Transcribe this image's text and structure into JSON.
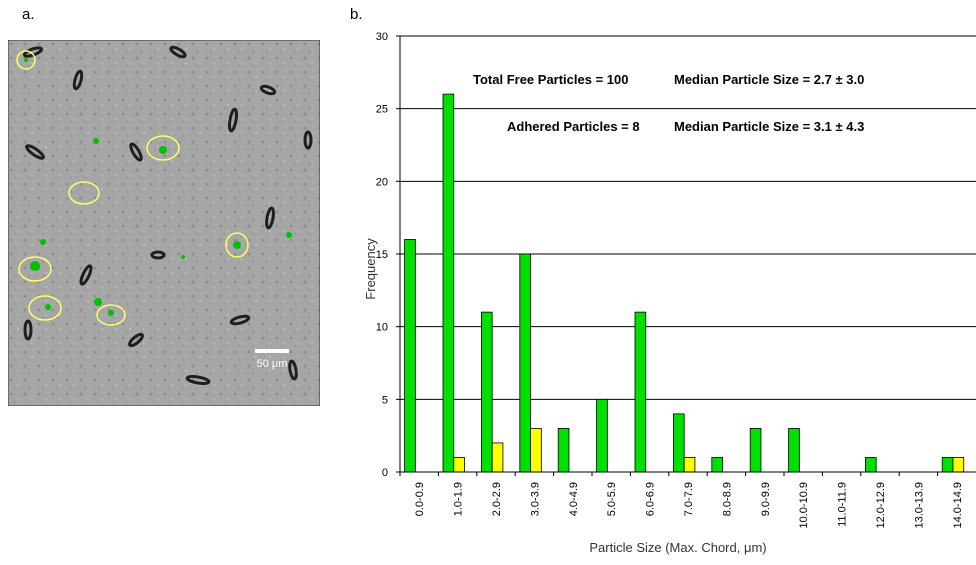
{
  "panels": {
    "a_label": "a.",
    "b_label": "b."
  },
  "micrograph": {
    "scale_bar_label": "50 μm"
  },
  "colors": {
    "free": "#00e000",
    "adhered": "#ffff00",
    "bar_outline": "#000000",
    "circle": "#ffff66",
    "micrograph_bg": "#a6a6a6"
  },
  "chart_data": {
    "type": "bar",
    "xlabel": "Particle Size (Max. Chord, μm)",
    "ylabel": "Frequency",
    "ylim": [
      0,
      30
    ],
    "yticks": [
      0,
      5,
      10,
      15,
      20,
      25,
      30
    ],
    "grid": true,
    "categories": [
      "0.0-0.9",
      "1.0-1.9",
      "2.0-2.9",
      "3.0-3.9",
      "4.0-4.9",
      "5.0-5.9",
      "6.0-6.9",
      "7.0-7.9",
      "8.0-8.9",
      "9.0-9.9",
      "10.0-10.9",
      "11.0-11.9",
      "12.0-12.9",
      "13.0-13.9",
      "14.0-14.9"
    ],
    "series": [
      {
        "color": "#00e000",
        "values": [
          16,
          26,
          11,
          15,
          3,
          5,
          11,
          4,
          1,
          3,
          3,
          0,
          1,
          0,
          1
        ]
      },
      {
        "color": "#ffff00",
        "values": [
          0,
          1,
          2,
          3,
          0,
          0,
          0,
          1,
          0,
          0,
          0,
          0,
          0,
          0,
          1
        ]
      }
    ],
    "annotations": {
      "total_free": "Total Free Particles = 100",
      "median_free": "Median Particle Size = 2.7 ± 3.0",
      "adhered": "Adhered Particles = 8",
      "median_adhered": "Median Particle Size = 3.1 ± 4.3"
    }
  }
}
